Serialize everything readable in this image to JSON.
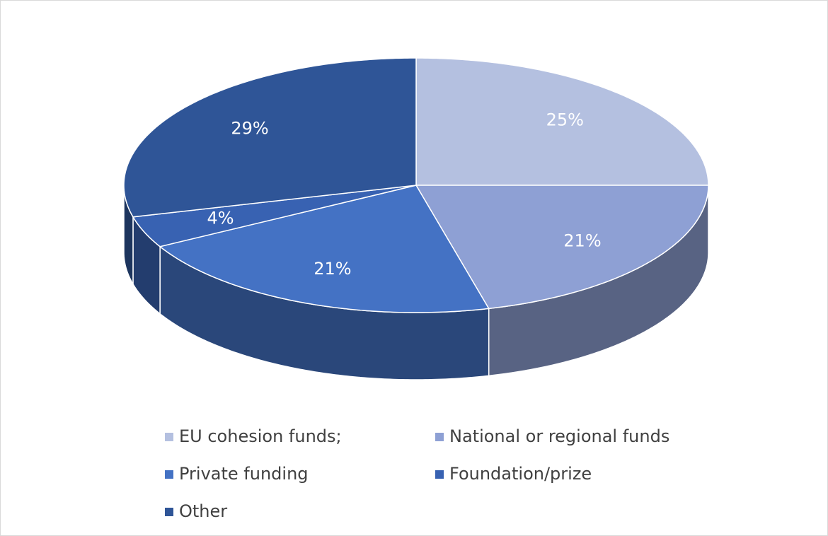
{
  "chart_data": {
    "type": "pie3d",
    "categories": [
      "EU cohesion funds;",
      "National or regional funds",
      "Private funding",
      "Foundation/prize",
      "Other"
    ],
    "values": [
      25,
      21,
      21,
      4,
      29
    ],
    "value_labels": [
      "25%",
      "21%",
      "21%",
      "4%",
      "29%"
    ],
    "colors": [
      "#b4c0e0",
      "#8ea0d4",
      "#4472c4",
      "#3862b2",
      "#2f5597"
    ],
    "legend": "bottom"
  }
}
